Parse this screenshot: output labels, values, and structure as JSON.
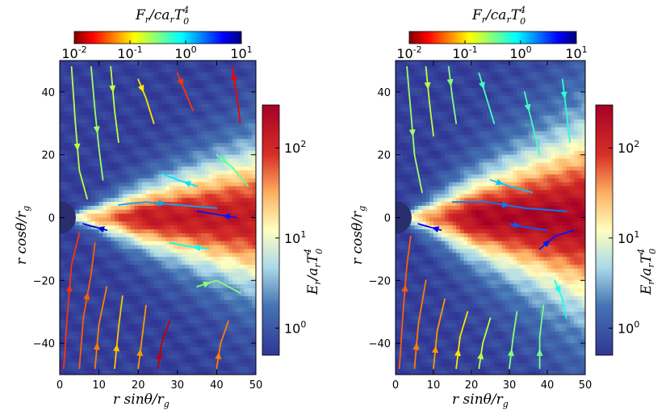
{
  "chart_data": [
    {
      "type": "heatmap",
      "panel": "left",
      "xlabel": "r sinθ/r_g",
      "ylabel": "r cosθ/r_g",
      "xlim": [
        0,
        50
      ],
      "ylim": [
        -50,
        50
      ],
      "xticks": [
        "0",
        "10",
        "20",
        "30",
        "40",
        "50"
      ],
      "yticks": [
        "40",
        "20",
        "0",
        "−20",
        "−40"
      ],
      "flux_colorbar": {
        "label": "F_r/c a_r T_0^4",
        "ticks": [
          "10^-2",
          "10^-1",
          "10^0",
          "10^1"
        ],
        "range": [
          0.01,
          10
        ],
        "scale": "log"
      },
      "energy_colorbar": {
        "label": "E_r/a_r T_0^4",
        "ticks": [
          "10^0",
          "10^1",
          "10^2"
        ],
        "range": [
          0.5,
          300
        ],
        "scale": "log"
      },
      "field": {
        "core_peak": 150,
        "disk_half_angle_deg": 24,
        "funnel_floor": 0.6
      },
      "streamlines": [
        {
          "pts": [
            [
              1,
              -48
            ],
            [
              2,
              -30
            ],
            [
              3,
              -15
            ],
            [
              5,
              -5
            ]
          ],
          "flux": 0.03
        },
        {
          "pts": [
            [
              5,
              -48
            ],
            [
              6,
              -32
            ],
            [
              8,
              -18
            ],
            [
              9,
              -8
            ]
          ],
          "flux": 0.04
        },
        {
          "pts": [
            [
              9,
              -48
            ],
            [
              10,
              -34
            ],
            [
              12,
              -22
            ]
          ],
          "flux": 0.05
        },
        {
          "pts": [
            [
              14,
              -48
            ],
            [
              15,
              -35
            ],
            [
              16,
              -25
            ]
          ],
          "flux": 0.08
        },
        {
          "pts": [
            [
              20,
              -48
            ],
            [
              21,
              -38
            ],
            [
              22,
              -28
            ]
          ],
          "flux": 0.06
        },
        {
          "pts": [
            [
              25,
              -48
            ],
            [
              26,
              -40
            ],
            [
              28,
              -33
            ]
          ],
          "flux": 0.015
        },
        {
          "pts": [
            [
              40,
              -48
            ],
            [
              41,
              -40
            ],
            [
              43,
              -33
            ]
          ],
          "flux": 0.05
        },
        {
          "pts": [
            [
              3,
              48
            ],
            [
              4,
              30
            ],
            [
              5,
              15
            ],
            [
              7,
              6
            ]
          ],
          "flux": 0.2
        },
        {
          "pts": [
            [
              8,
              48
            ],
            [
              9,
              34
            ],
            [
              10,
              22
            ],
            [
              11,
              12
            ]
          ],
          "flux": 0.25
        },
        {
          "pts": [
            [
              13,
              48
            ],
            [
              14,
              34
            ],
            [
              15,
              24
            ]
          ],
          "flux": 0.2
        },
        {
          "pts": [
            [
              20,
              44
            ],
            [
              22,
              38
            ],
            [
              24,
              30
            ]
          ],
          "flux": 0.1
        },
        {
          "pts": [
            [
              30,
              46
            ],
            [
              32,
              40
            ],
            [
              34,
              34
            ]
          ],
          "flux": 0.03
        },
        {
          "pts": [
            [
              44,
              48
            ],
            [
              45,
              40
            ],
            [
              46,
              30
            ]
          ],
          "flux": 0.02
        },
        {
          "pts": [
            [
              15,
              4
            ],
            [
              22,
              5
            ],
            [
              30,
              4
            ],
            [
              40,
              3
            ]
          ],
          "flux": 1.5
        },
        {
          "pts": [
            [
              35,
              10
            ],
            [
              30,
              12
            ],
            [
              26,
              14
            ]
          ],
          "flux": 1.0
        },
        {
          "pts": [
            [
              38,
              -10
            ],
            [
              32,
              -9
            ],
            [
              28,
              -8
            ]
          ],
          "flux": 0.8
        },
        {
          "pts": [
            [
              40,
              20
            ],
            [
              44,
              16
            ],
            [
              48,
              10
            ]
          ],
          "flux": 0.4
        },
        {
          "pts": [
            [
              45,
              0
            ],
            [
              40,
              1
            ],
            [
              35,
              2
            ]
          ],
          "flux": 4.0
        },
        {
          "pts": [
            [
              12,
              -4
            ],
            [
              9,
              -3
            ],
            [
              6,
              -2
            ]
          ],
          "flux": 6.0
        },
        {
          "pts": [
            [
              35,
              -22
            ],
            [
              40,
              -20
            ],
            [
              46,
              -24
            ]
          ],
          "flux": 0.3
        }
      ]
    },
    {
      "type": "heatmap",
      "panel": "right",
      "xlabel": "r sinθ/r_g",
      "ylabel": "r cosθ/r_g",
      "xlim": [
        0,
        50
      ],
      "ylim": [
        -50,
        50
      ],
      "xticks": [
        "0",
        "10",
        "20",
        "30",
        "40",
        "50"
      ],
      "yticks": [
        "40",
        "20",
        "0",
        "−20",
        "−40"
      ],
      "flux_colorbar": {
        "label": "F_r/c a_r T_0^4",
        "ticks": [
          "10^-2",
          "10^-1",
          "10^0",
          "10^1"
        ],
        "range": [
          0.01,
          10
        ],
        "scale": "log"
      },
      "energy_colorbar": {
        "label": "E_r/a_r T_0^4",
        "ticks": [
          "10^0",
          "10^1",
          "10^2"
        ],
        "range": [
          0.5,
          300
        ],
        "scale": "log"
      },
      "field": {
        "core_peak": 250,
        "disk_half_angle_deg": 30,
        "funnel_floor": 0.6
      },
      "streamlines": [
        {
          "pts": [
            [
              1,
              -48
            ],
            [
              2,
              -30
            ],
            [
              3,
              -15
            ],
            [
              4,
              -6
            ]
          ],
          "flux": 0.04
        },
        {
          "pts": [
            [
              5,
              -48
            ],
            [
              6,
              -34
            ],
            [
              8,
              -20
            ]
          ],
          "flux": 0.05
        },
        {
          "pts": [
            [
              10,
              -48
            ],
            [
              11,
              -36
            ],
            [
              13,
              -26
            ]
          ],
          "flux": 0.06
        },
        {
          "pts": [
            [
              16,
              -48
            ],
            [
              17,
              -38
            ],
            [
              19,
              -30
            ]
          ],
          "flux": 0.1
        },
        {
          "pts": [
            [
              22,
              -48
            ],
            [
              23,
              -40
            ],
            [
              25,
              -32
            ]
          ],
          "flux": 0.2
        },
        {
          "pts": [
            [
              30,
              -48
            ],
            [
              31,
              -38
            ],
            [
              32,
              -30
            ]
          ],
          "flux": 0.3
        },
        {
          "pts": [
            [
              38,
              -48
            ],
            [
              38,
              -38
            ],
            [
              39,
              -28
            ]
          ],
          "flux": 0.35
        },
        {
          "pts": [
            [
              3,
              48
            ],
            [
              4,
              34
            ],
            [
              5,
              20
            ],
            [
              7,
              8
            ]
          ],
          "flux": 0.25
        },
        {
          "pts": [
            [
              8,
              48
            ],
            [
              9,
              36
            ],
            [
              10,
              26
            ]
          ],
          "flux": 0.2
        },
        {
          "pts": [
            [
              14,
              48
            ],
            [
              15,
              38
            ],
            [
              16,
              30
            ]
          ],
          "flux": 0.3
        },
        {
          "pts": [
            [
              22,
              46
            ],
            [
              24,
              38
            ],
            [
              26,
              30
            ]
          ],
          "flux": 0.5
        },
        {
          "pts": [
            [
              34,
              40
            ],
            [
              36,
              30
            ],
            [
              38,
              20
            ]
          ],
          "flux": 0.5
        },
        {
          "pts": [
            [
              44,
              44
            ],
            [
              45,
              34
            ],
            [
              46,
              24
            ]
          ],
          "flux": 0.6
        },
        {
          "pts": [
            [
              15,
              5
            ],
            [
              24,
              5
            ],
            [
              34,
              3
            ],
            [
              45,
              2
            ]
          ],
          "flux": 2.0
        },
        {
          "pts": [
            [
              30,
              -2
            ],
            [
              34,
              -3
            ],
            [
              40,
              -4
            ]
          ],
          "flux": 2.5
        },
        {
          "pts": [
            [
              38,
              -10
            ],
            [
              42,
              -6
            ],
            [
              47,
              -4
            ]
          ],
          "flux": 4.0
        },
        {
          "pts": [
            [
              42,
              -20
            ],
            [
              44,
              -26
            ],
            [
              45,
              -32
            ]
          ],
          "flux": 0.7
        },
        {
          "pts": [
            [
              12,
              -4
            ],
            [
              9,
              -3
            ],
            [
              6,
              -2
            ]
          ],
          "flux": 5.0
        },
        {
          "pts": [
            [
              25,
              12
            ],
            [
              30,
              10
            ],
            [
              36,
              8
            ]
          ],
          "flux": 1.2
        }
      ]
    }
  ]
}
